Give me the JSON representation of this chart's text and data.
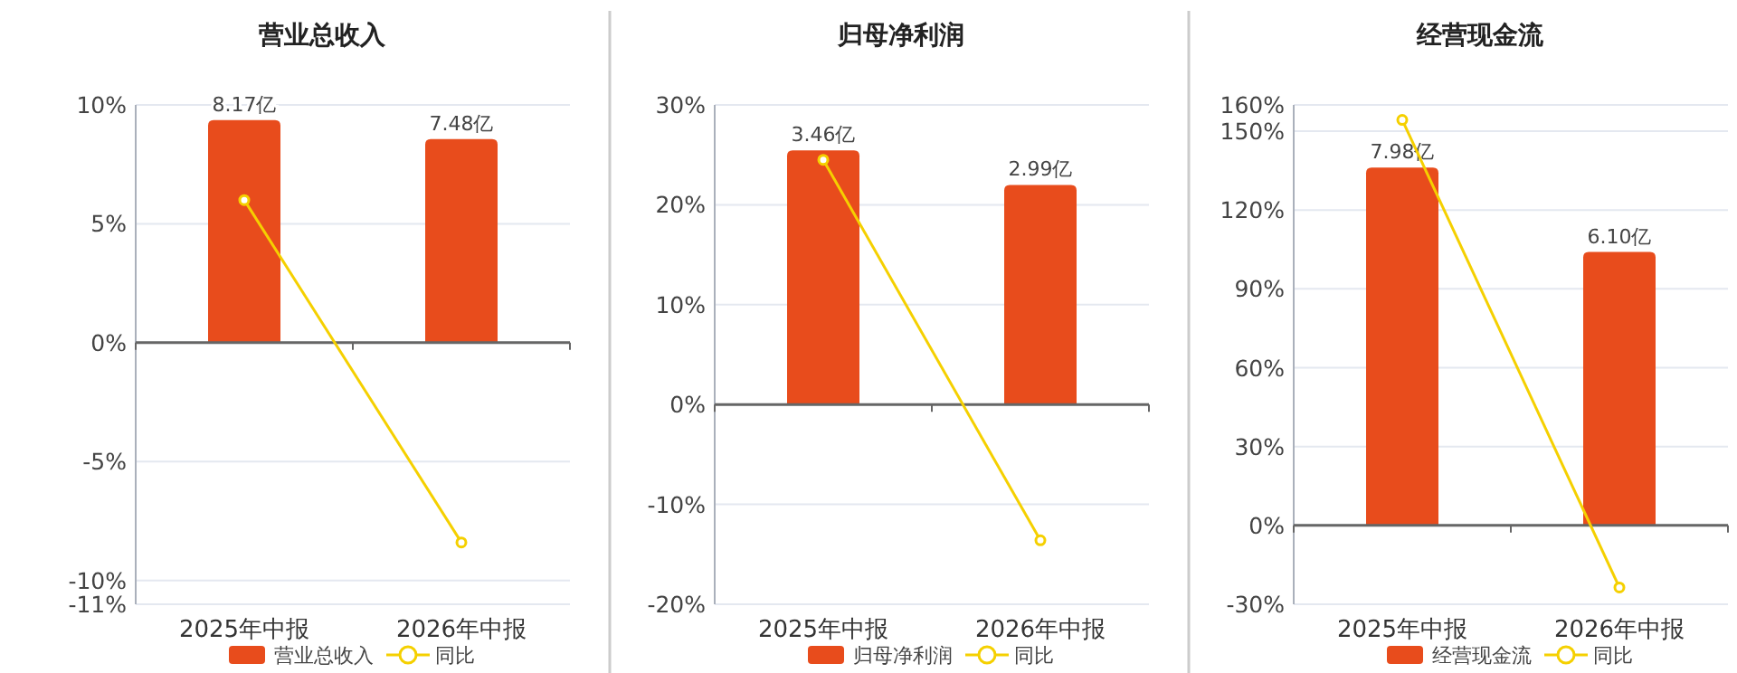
{
  "chart_data": [
    {
      "type": "bar",
      "title": "营业总收入",
      "categories": [
        "2025年中报",
        "2026年中报"
      ],
      "ylim": [
        -11,
        10
      ],
      "yticks": [
        {
          "value": -11,
          "label": "-11%"
        },
        {
          "value": -10,
          "label": "-10%"
        },
        {
          "value": -5,
          "label": "-5%"
        },
        {
          "value": 0,
          "label": "0%"
        },
        {
          "value": 5,
          "label": "5%"
        },
        {
          "value": 10,
          "label": "10%"
        }
      ],
      "y2lim": [
        -9.6,
        8.73
      ],
      "grid": "y",
      "legend": "bottom",
      "series": [
        {
          "name": "营业总收入",
          "axis": "y2",
          "color": "#e84c1c",
          "values": [
            8.17,
            7.48
          ],
          "value_labels": [
            "8.17亿",
            "7.48亿"
          ]
        },
        {
          "name": "同比",
          "type": "line",
          "color": "#f5d000",
          "marker": "circle",
          "values": [
            6.0,
            -8.4
          ]
        }
      ]
    },
    {
      "type": "bar",
      "title": "归母净利润",
      "categories": [
        "2025年中报",
        "2026年中报"
      ],
      "ylim": [
        -20,
        30
      ],
      "yticks": [
        {
          "value": -20,
          "label": "-20%"
        },
        {
          "value": -10,
          "label": "-10%"
        },
        {
          "value": 0,
          "label": "0%"
        },
        {
          "value": 10,
          "label": "10%"
        },
        {
          "value": 20,
          "label": "20%"
        },
        {
          "value": 30,
          "label": "30%"
        }
      ],
      "y2lim": [
        -2.72,
        4.08
      ],
      "grid": "y",
      "legend": "bottom",
      "series": [
        {
          "name": "归母净利润",
          "axis": "y2",
          "color": "#e84c1c",
          "values": [
            3.46,
            2.99
          ],
          "value_labels": [
            "3.46亿",
            "2.99亿"
          ]
        },
        {
          "name": "同比",
          "type": "line",
          "color": "#f5d000",
          "marker": "circle",
          "values": [
            24.5,
            -13.6
          ]
        }
      ]
    },
    {
      "type": "bar",
      "title": "经营现金流",
      "categories": [
        "2025年中报",
        "2026年中报"
      ],
      "ylim": [
        -30,
        160
      ],
      "yticks": [
        {
          "value": -30,
          "label": "-30%"
        },
        {
          "value": 0,
          "label": "0%"
        },
        {
          "value": 30,
          "label": "30%"
        },
        {
          "value": 60,
          "label": "60%"
        },
        {
          "value": 90,
          "label": "90%"
        },
        {
          "value": 120,
          "label": "120%"
        },
        {
          "value": 150,
          "label": "150%"
        },
        {
          "value": 160,
          "label": "160%"
        }
      ],
      "y2lim": [
        -1.76,
        9.38
      ],
      "grid": "y",
      "legend": "bottom",
      "series": [
        {
          "name": "经营现金流",
          "axis": "y2",
          "color": "#e84c1c",
          "values": [
            7.98,
            6.1
          ],
          "value_labels": [
            "7.98亿",
            "6.10亿"
          ]
        },
        {
          "name": "同比",
          "type": "line",
          "color": "#f5d000",
          "marker": "circle",
          "values": [
            154.3,
            -23.6
          ]
        }
      ]
    }
  ]
}
